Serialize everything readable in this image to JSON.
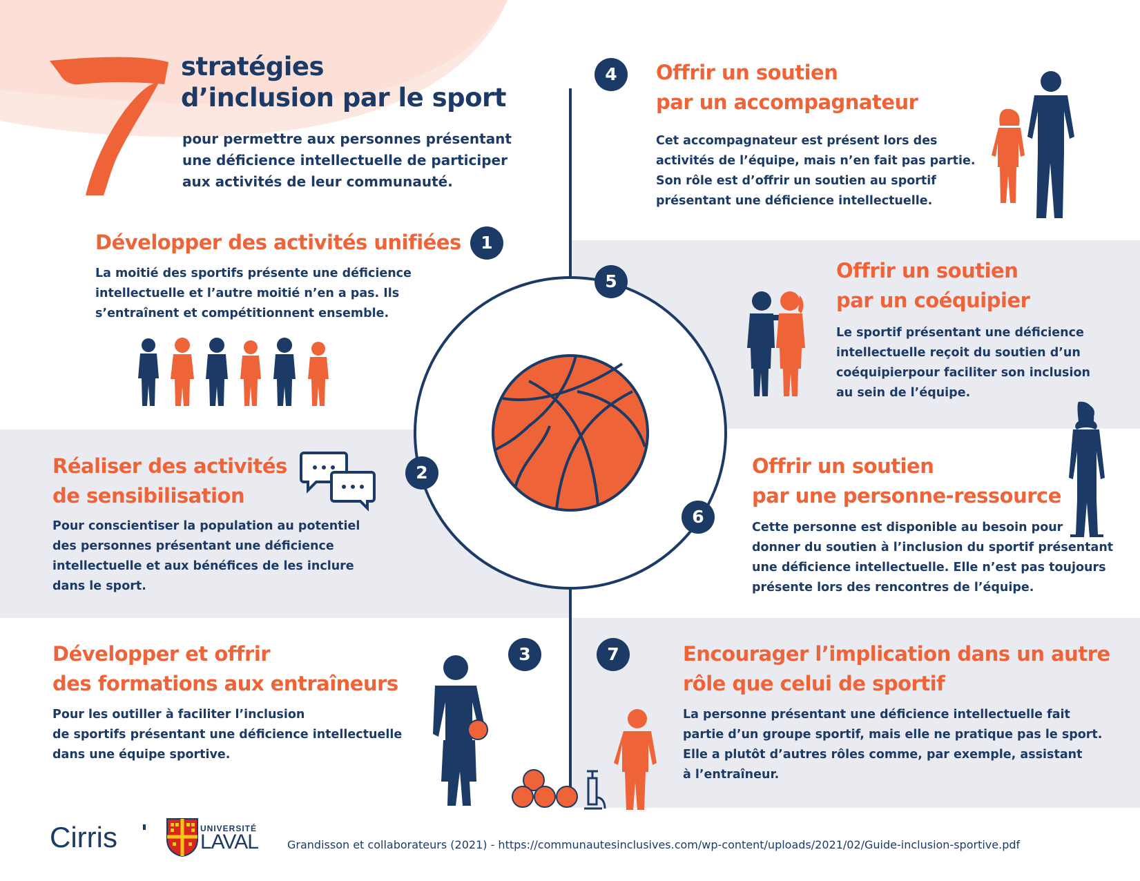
{
  "header": {
    "big_number": "7",
    "title_line1": "stratégies",
    "title_line2": "d’inclusion par le sport",
    "subtitle_lines": [
      "pour permettre aux personnes présentant",
      "une déficience intellectuelle de participer",
      "aux activités de leur communauté."
    ]
  },
  "strategies": [
    {
      "number": "1",
      "title_lines": [
        "Développer des activités unifiées"
      ],
      "body_lines": [
        "La moitié des sportifs présente une déficience",
        "intellectuelle et l’autre moitié n’en a pas. Ils",
        "s’entraînent et compétitionnent ensemble."
      ]
    },
    {
      "number": "2",
      "title_lines": [
        "Réaliser des activités",
        "de sensibilisation"
      ],
      "body_lines": [
        "Pour conscientiser la population au potentiel",
        "des personnes présentant une déficience",
        "intellectuelle et aux bénéfices de les inclure",
        "dans le sport."
      ]
    },
    {
      "number": "3",
      "title_lines": [
        "Développer et offrir",
        "des formations aux entraîneurs"
      ],
      "body_lines": [
        "Pour les outiller à faciliter l’inclusion",
        "de sportifs présentant une déficience intellectuelle",
        "dans une équipe sportive."
      ]
    },
    {
      "number": "4",
      "title_lines": [
        "Offrir un soutien",
        "par un accompagnateur"
      ],
      "body_lines": [
        "Cet accompagnateur est présent lors des",
        "activités de l’équipe, mais n’en fait pas partie.",
        "Son rôle est d’offrir un soutien au sportif",
        "présentant une déficience intellectuelle."
      ]
    },
    {
      "number": "5",
      "title_lines": [
        "Offrir un soutien",
        "par un coéquipier"
      ],
      "body_lines": [
        "Le sportif présentant une déficience",
        "intellectuelle reçoit du soutien d’un",
        "coéquipierpour faciliter son inclusion",
        "au sein de l’équipe."
      ]
    },
    {
      "number": "6",
      "title_lines": [
        "Offrir un soutien",
        "par une personne-ressource"
      ],
      "body_lines": [
        "Cette personne est disponible au besoin pour",
        "donner du soutien à l’inclusion du sportif présentant",
        "une déficience intellectuelle. Elle n’est pas toujours",
        "présente lors des rencontres de l’équipe."
      ]
    },
    {
      "number": "7",
      "title_lines": [
        "Encourager l’implication dans un autre",
        "rôle que celui de sportif"
      ],
      "body_lines": [
        "La personne présentant une déficience intellectuelle fait",
        "partie d’un groupe sportif, mais elle ne pratique pas le sport.",
        "Elle a plutôt d’autres rôles comme, par exemple, assistant",
        "à l’entraîneur."
      ]
    }
  ],
  "footer": {
    "logo_cirris": "Cirris",
    "logo_laval_top": "UNIVERSITÉ",
    "logo_laval_name": "LAVAL",
    "citation": "Grandisson et collaborateurs (2021) - https://communautesinclusives.com/wp-content/uploads/2021/02/Guide-inclusion-sportive.pdf"
  },
  "colors": {
    "navy": "#1b3a66",
    "orange": "#ee6337",
    "band_gray": "#e9ebf0",
    "peach": "#fbe3dc"
  },
  "icons": [
    "basketball-icon",
    "speech-bubbles-icon",
    "people-group-icon",
    "adult-child-icon",
    "teammates-icon",
    "standing-woman-icon",
    "coach-icon",
    "balls-icon",
    "pump-icon",
    "child-icon"
  ]
}
